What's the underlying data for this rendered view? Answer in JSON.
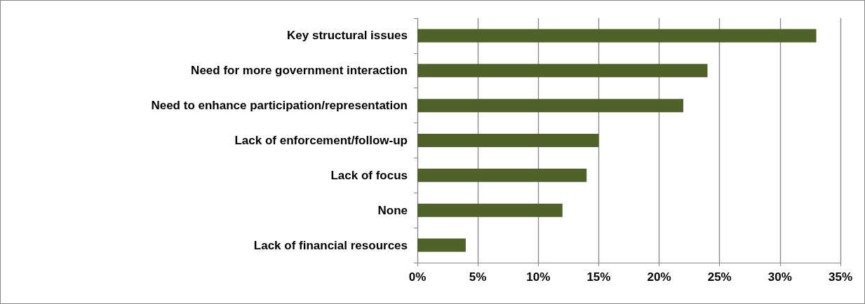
{
  "chart_data": {
    "type": "bar",
    "orientation": "horizontal",
    "categories": [
      "Key structural issues",
      "Need for more government interaction",
      "Need to enhance participation/representation",
      "Lack of enforcement/follow-up",
      "Lack of focus",
      "None",
      "Lack of financial resources"
    ],
    "values": [
      33,
      24,
      22,
      15,
      14,
      12,
      4
    ],
    "color": "#4f6228",
    "xlim": [
      0,
      35
    ],
    "xticks": [
      {
        "value": 0,
        "label": "0%"
      },
      {
        "value": 5,
        "label": "5%"
      },
      {
        "value": 10,
        "label": "10%"
      },
      {
        "value": 15,
        "label": "15%"
      },
      {
        "value": 20,
        "label": "20%"
      },
      {
        "value": 25,
        "label": "25%"
      },
      {
        "value": 30,
        "label": "30%"
      },
      {
        "value": 35,
        "label": "35%"
      }
    ],
    "grid": "x"
  }
}
